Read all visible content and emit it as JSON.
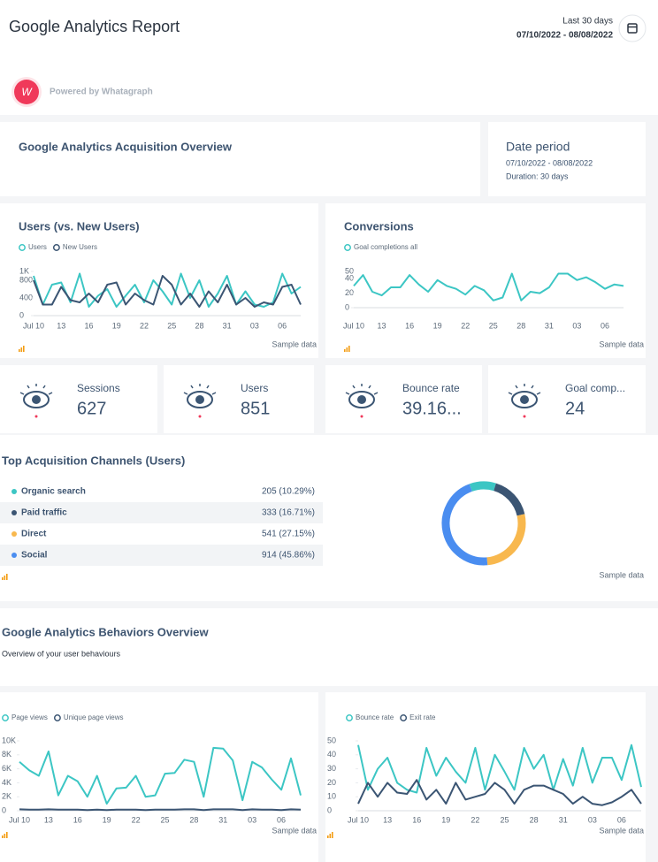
{
  "header": {
    "title": "Google Analytics Report",
    "range_label": "Last 30 days",
    "range": "07/10/2022 - 08/08/2022",
    "powered_by": "Powered by Whatagraph"
  },
  "acquisition": {
    "title": "Google Analytics Acquisition Overview"
  },
  "date_period": {
    "title": "Date period",
    "range": "07/10/2022 - 08/08/2022",
    "duration": "Duration: 30 days"
  },
  "kpis": [
    {
      "label": "Sessions",
      "value": 627
    },
    {
      "label": "Users",
      "value": 851
    },
    {
      "label": "Bounce rate",
      "value": "39.16..."
    },
    {
      "label": "Goal comp...",
      "value": 24
    }
  ],
  "behaviors": {
    "title": "Google Analytics Behaviors Overview",
    "subtitle": "Overview of your user behaviours"
  },
  "chart_data": [
    {
      "type": "line",
      "title": "Users (vs. New Users)",
      "note": "Sample data",
      "categories": [
        "Jul 10",
        null,
        null,
        "13",
        null,
        null,
        "16",
        null,
        null,
        "19",
        null,
        null,
        "22",
        null,
        null,
        "25",
        null,
        null,
        "28",
        null,
        null,
        "31",
        null,
        null,
        "03",
        null,
        null,
        "06",
        null,
        null
      ],
      "series": [
        {
          "name": "Users",
          "color": "#3cc6c4",
          "values": [
            900,
            250,
            700,
            750,
            300,
            950,
            200,
            450,
            600,
            200,
            450,
            700,
            300,
            800,
            550,
            250,
            950,
            400,
            800,
            200,
            500,
            900,
            250,
            550,
            250,
            200,
            300,
            950,
            500,
            650
          ]
        },
        {
          "name": "New Users",
          "color": "#3b5573",
          "values": [
            800,
            250,
            250,
            650,
            350,
            300,
            500,
            300,
            700,
            750,
            250,
            500,
            350,
            250,
            900,
            700,
            250,
            500,
            200,
            550,
            300,
            700,
            250,
            400,
            200,
            300,
            250,
            650,
            700,
            250
          ]
        }
      ],
      "ylim": [
        0,
        1000
      ],
      "yticks": [
        0,
        400,
        800,
        {
          "value": 1000,
          "label": "1K"
        }
      ]
    },
    {
      "type": "line",
      "title": "Conversions",
      "note": "Sample data",
      "categories": [
        "Jul 10",
        null,
        null,
        "13",
        null,
        null,
        "16",
        null,
        null,
        "19",
        null,
        null,
        "22",
        null,
        null,
        "25",
        null,
        null,
        "28",
        null,
        null,
        "31",
        null,
        null,
        "03",
        null,
        null,
        "06",
        null,
        null
      ],
      "series": [
        {
          "name": "Goal completions all",
          "color": "#3cc6c4",
          "values": [
            30,
            45,
            22,
            17,
            28,
            28,
            45,
            32,
            22,
            38,
            30,
            26,
            18,
            30,
            24,
            10,
            14,
            47,
            10,
            22,
            20,
            28,
            47,
            47,
            38,
            42,
            35,
            26,
            32,
            30
          ]
        }
      ],
      "ylim": [
        0,
        50
      ],
      "yticks": [
        0,
        20,
        40,
        50
      ]
    },
    {
      "type": "pie",
      "title": "Top Acquisition Channels (Users)",
      "note": "Sample data",
      "categories": [
        "Organic search",
        "Paid traffic",
        "Direct",
        "Social"
      ],
      "values": [
        205,
        333,
        541,
        914
      ],
      "value_labels": [
        "205 (10.29%)",
        "333 (16.71%)",
        "541 (27.15%)",
        "914 (45.86%)"
      ],
      "colors": [
        "#3cc6c4",
        "#3b5573",
        "#f8b84e",
        "#4a8df0"
      ]
    },
    {
      "type": "line",
      "note": "Sample data",
      "categories": [
        "Jul 10",
        null,
        null,
        "13",
        null,
        null,
        "16",
        null,
        null,
        "19",
        null,
        null,
        "22",
        null,
        null,
        "25",
        null,
        null,
        "28",
        null,
        null,
        "31",
        null,
        null,
        "03",
        null,
        null,
        "06",
        null,
        null
      ],
      "series": [
        {
          "name": "Page views",
          "color": "#3cc6c4",
          "values": [
            7000,
            5800,
            5000,
            8500,
            2200,
            5000,
            4200,
            2000,
            5000,
            1000,
            3200,
            3300,
            5000,
            2000,
            2200,
            5300,
            5400,
            7300,
            7000,
            2000,
            9000,
            8900,
            7200,
            1500,
            7000,
            6200,
            4500,
            3000,
            7500,
            2200
          ]
        },
        {
          "name": "Unique page views",
          "color": "#3b5573",
          "values": [
            200,
            150,
            150,
            200,
            150,
            150,
            150,
            100,
            150,
            100,
            150,
            150,
            150,
            100,
            150,
            150,
            150,
            200,
            200,
            100,
            200,
            200,
            200,
            100,
            200,
            150,
            150,
            100,
            200,
            150
          ]
        }
      ],
      "ylim": [
        0,
        10000
      ],
      "yticks": [
        0,
        {
          "value": 2000,
          "label": "2K"
        },
        {
          "value": 4000,
          "label": "4K"
        },
        {
          "value": 6000,
          "label": "6K"
        },
        {
          "value": 8000,
          "label": "8K"
        },
        {
          "value": 10000,
          "label": "10K"
        }
      ]
    },
    {
      "type": "line",
      "note": "Sample data",
      "categories": [
        "Jul 10",
        null,
        null,
        "13",
        null,
        null,
        "16",
        null,
        null,
        "19",
        null,
        null,
        "22",
        null,
        null,
        "25",
        null,
        null,
        "28",
        null,
        null,
        "31",
        null,
        null,
        "03",
        null,
        null,
        "06",
        null,
        null
      ],
      "series": [
        {
          "name": "Bounce rate",
          "color": "#3cc6c4",
          "values": [
            47,
            15,
            30,
            38,
            20,
            15,
            13,
            45,
            25,
            38,
            28,
            20,
            45,
            15,
            40,
            28,
            15,
            45,
            30,
            40,
            15,
            37,
            18,
            45,
            20,
            38,
            38,
            22,
            47,
            17
          ]
        },
        {
          "name": "Exit rate",
          "color": "#3b5573",
          "values": [
            5,
            20,
            10,
            20,
            13,
            12,
            22,
            8,
            15,
            5,
            20,
            8,
            10,
            12,
            20,
            15,
            5,
            15,
            18,
            18,
            15,
            12,
            5,
            10,
            5,
            4,
            6,
            10,
            15,
            5
          ]
        }
      ],
      "ylim": [
        0,
        50
      ],
      "yticks": [
        0,
        10,
        20,
        30,
        40,
        50
      ]
    }
  ]
}
